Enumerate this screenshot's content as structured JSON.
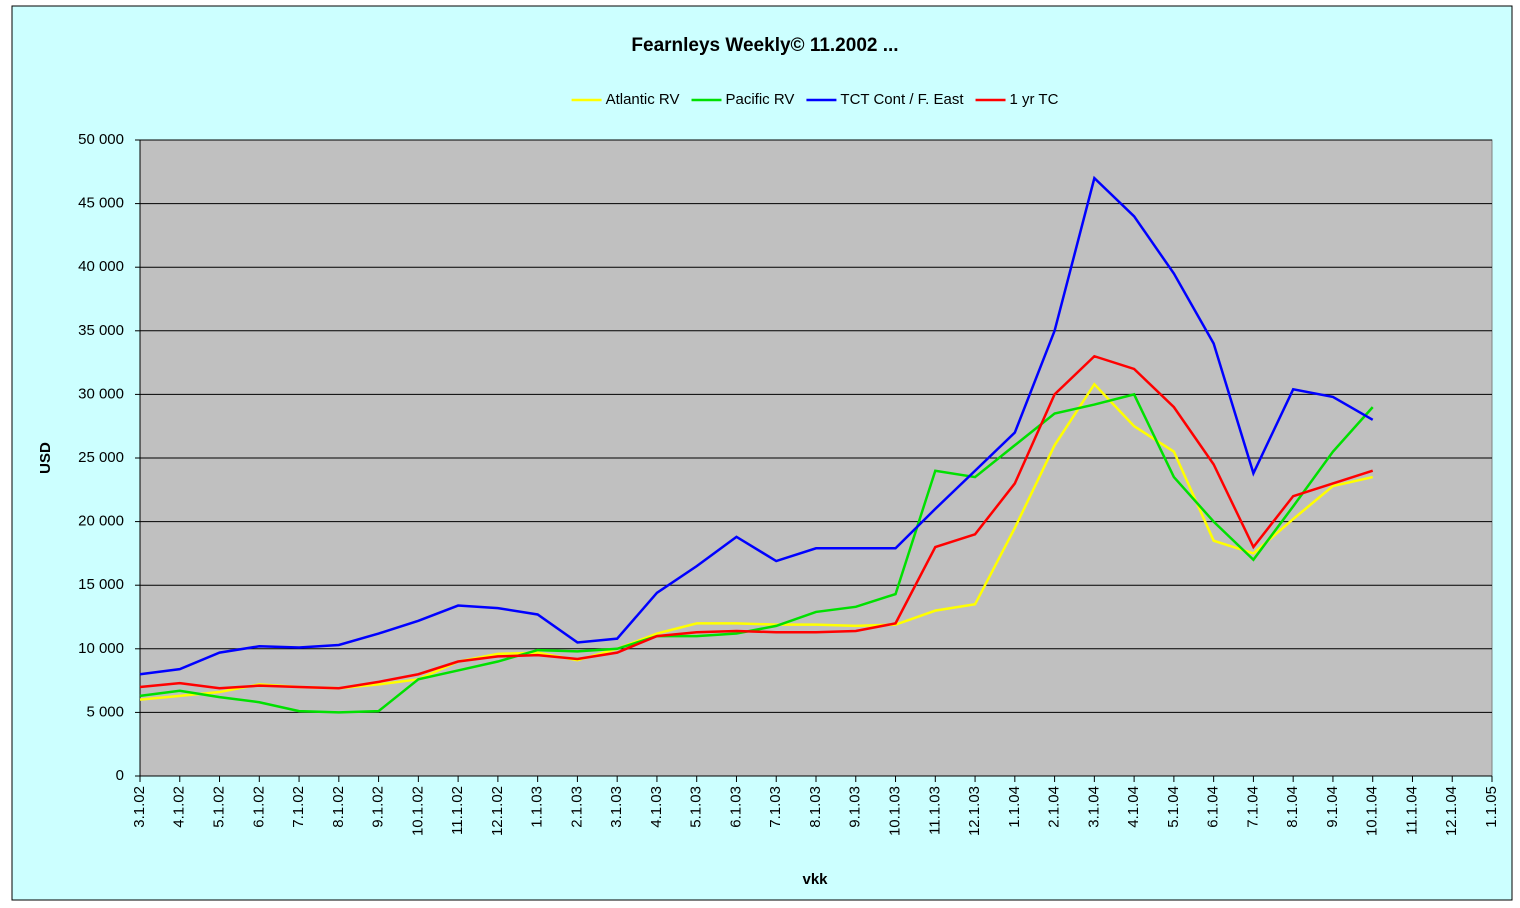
{
  "chart_data": {
    "type": "line",
    "title": "Fearnleys Weekly© 11.2002 ...",
    "y_label": "USD",
    "x_label": "vkk",
    "categories": [
      "3.1.02",
      "4.1.02",
      "5.1.02",
      "6.1.02",
      "7.1.02",
      "8.1.02",
      "9.1.02",
      "10.1.02",
      "11.1.02",
      "12.1.02",
      "1.1.03",
      "2.1.03",
      "3.1.03",
      "4.1.03",
      "5.1.03",
      "6.1.03",
      "7.1.03",
      "8.1.03",
      "9.1.03",
      "10.1.03",
      "11.1.03",
      "12.1.03",
      "1.1.04",
      "2.1.04",
      "3.1.04",
      "4.1.04",
      "5.1.04",
      "6.1.04",
      "7.1.04",
      "8.1.04",
      "9.1.04",
      "10.1.04",
      "11.1.04",
      "12.1.04",
      "1.1.05"
    ],
    "series": [
      {
        "name": "Atlantic RV",
        "color": "#ffff00",
        "values": [
          6000,
          6300,
          6600,
          7200,
          7000,
          6900,
          7200,
          7600,
          9000,
          9600,
          9700,
          9100,
          10000,
          11200,
          12000,
          12000,
          11900,
          11900,
          11800,
          11900,
          13000,
          13500,
          19500,
          26000,
          30800,
          27500,
          25500,
          18500,
          17500,
          20200,
          22800,
          23500,
          null,
          null,
          null
        ]
      },
      {
        "name": "Pacific RV",
        "color": "#00e000",
        "values": [
          6300,
          6700,
          6200,
          5800,
          5100,
          5000,
          5100,
          7600,
          8300,
          9000,
          9900,
          9800,
          10000,
          11000,
          11000,
          11200,
          11800,
          12900,
          13300,
          14300,
          24000,
          23500,
          26000,
          28500,
          29200,
          30000,
          23500,
          20000,
          17000,
          21200,
          25500,
          29000,
          null,
          null,
          null
        ]
      },
      {
        "name": "TCT Cont / F. East",
        "color": "#0000ff",
        "values": [
          8000,
          8400,
          9700,
          10200,
          10100,
          10300,
          11200,
          12200,
          13400,
          13200,
          12700,
          10500,
          10800,
          14400,
          16500,
          18800,
          16900,
          17900,
          17900,
          17900,
          21000,
          24000,
          27000,
          35000,
          47000,
          44000,
          39500,
          34000,
          23800,
          30400,
          29800,
          28000,
          null,
          null,
          null
        ]
      },
      {
        "name": "1 yr TC",
        "color": "#ff0000",
        "values": [
          7000,
          7300,
          6900,
          7100,
          7000,
          6900,
          7400,
          8000,
          9000,
          9400,
          9500,
          9200,
          9700,
          11000,
          11300,
          11400,
          11300,
          11300,
          11400,
          12000,
          18000,
          19000,
          23000,
          30000,
          33000,
          32000,
          29000,
          24500,
          18000,
          22000,
          23000,
          24000,
          null,
          null,
          null
        ]
      }
    ],
    "ylim": [
      0,
      50000
    ],
    "yticks": [
      0,
      {
        "value": 5000,
        "label": "5 000"
      },
      {
        "value": 10000,
        "label": "10 000"
      },
      {
        "value": 15000,
        "label": "15 000"
      },
      {
        "value": 20000,
        "label": "20 000"
      },
      {
        "value": 25000,
        "label": "25 000"
      },
      {
        "value": 30000,
        "label": "30 000"
      },
      {
        "value": 35000,
        "label": "35 000"
      },
      {
        "value": 40000,
        "label": "40 000"
      },
      {
        "value": 45000,
        "label": "45 000"
      },
      {
        "value": 50000,
        "label": "50 000"
      }
    ],
    "grid": true,
    "legend": "top"
  }
}
